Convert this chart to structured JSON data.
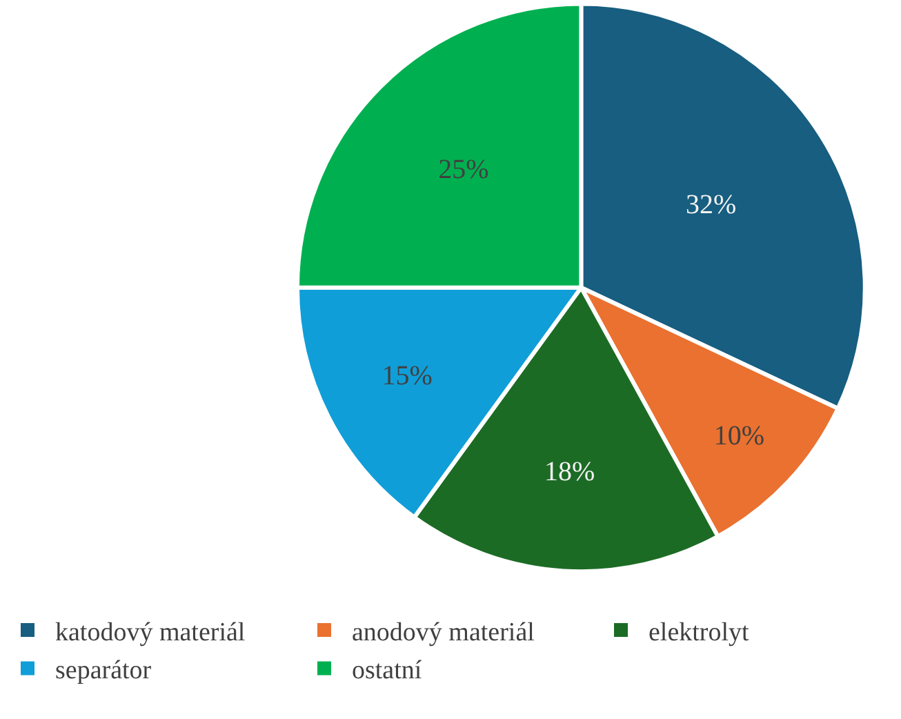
{
  "chart_data": {
    "type": "pie",
    "categories": [
      "katodový materiál",
      "anodový materiál",
      "elektrolyt",
      "separátor",
      "ostatní"
    ],
    "values": [
      32,
      10,
      18,
      15,
      25
    ],
    "value_labels": [
      "32%",
      "10%",
      "18%",
      "15%",
      "25%"
    ],
    "colors": [
      "#175e80",
      "#ea7130",
      "#1c6b25",
      "#109ed8",
      "#00b050"
    ],
    "legend": "bottom"
  }
}
